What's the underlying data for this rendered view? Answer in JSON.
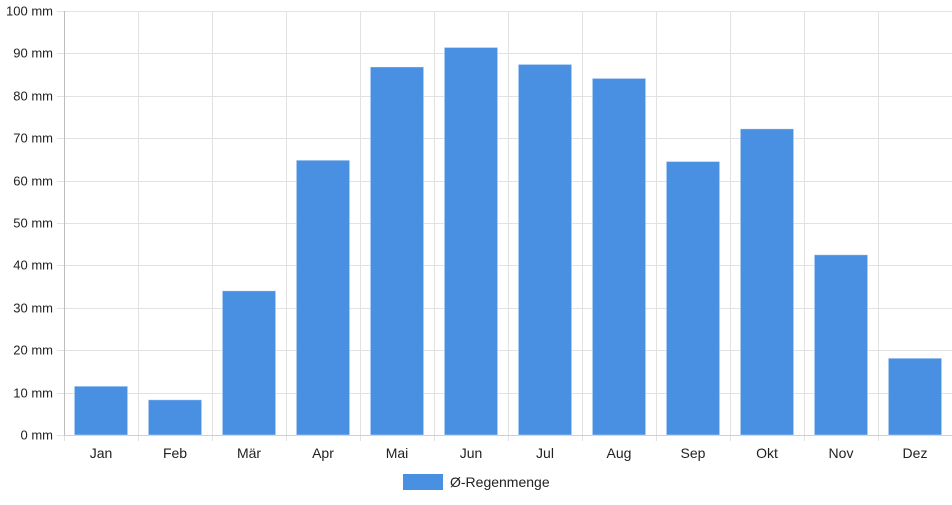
{
  "chart_data": {
    "type": "bar",
    "categories": [
      "Jan",
      "Feb",
      "Mär",
      "Apr",
      "Mai",
      "Jun",
      "Jul",
      "Aug",
      "Sep",
      "Okt",
      "Nov",
      "Dez"
    ],
    "series": [
      {
        "name": "Ø-Regenmenge",
        "values": [
          11.5,
          8.3,
          34,
          64.8,
          86.8,
          91.4,
          87.4,
          84.1,
          64.5,
          72.2,
          42.5,
          18.1
        ],
        "color": "#4a90e2"
      }
    ],
    "ylim": [
      0,
      100
    ],
    "yticks": [
      0,
      10,
      20,
      30,
      40,
      50,
      60,
      70,
      80,
      90,
      100
    ],
    "y_unit": "mm",
    "grid": true,
    "legend_position": "bottom"
  }
}
